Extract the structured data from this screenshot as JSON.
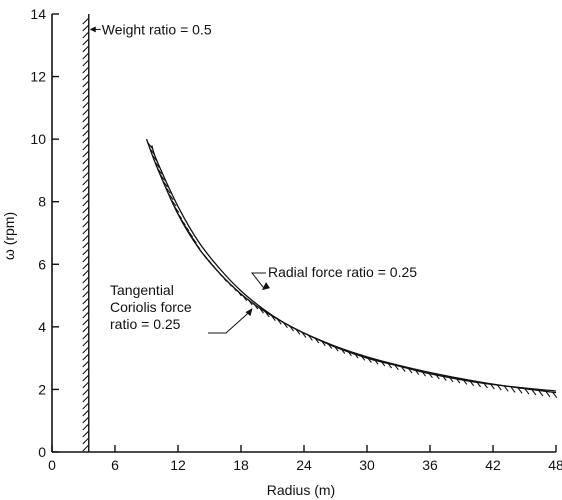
{
  "chart_data": {
    "type": "line",
    "title": "",
    "xlabel": "Radius (m)",
    "ylabel": "ω (rpm)",
    "xlim": [
      0,
      48
    ],
    "ylim": [
      0,
      14
    ],
    "xticks": [
      0,
      6,
      12,
      18,
      24,
      30,
      36,
      42,
      48
    ],
    "yticks": [
      0,
      2,
      4,
      6,
      8,
      10,
      12,
      14
    ],
    "grid": false,
    "legend": "none",
    "series": [
      {
        "label": "Weight ratio = 0.5",
        "kind": "vertical-boundary",
        "x": [
          3.5,
          3.5
        ],
        "y": [
          0,
          14
        ],
        "hatched": true
      },
      {
        "label": "Radial force ratio = 0.25",
        "kind": "curve",
        "x": [
          9.5,
          10,
          12,
          14,
          16,
          18,
          20,
          22,
          24,
          27,
          30,
          33,
          36,
          40,
          44,
          48
        ],
        "y": [
          9.8,
          9.3,
          7.85,
          6.7,
          5.85,
          5.15,
          4.6,
          4.15,
          3.8,
          3.35,
          3.0,
          2.75,
          2.5,
          2.25,
          2.08,
          1.95
        ],
        "hatched": false
      },
      {
        "label": "Tangential\nCoriolis force\nratio = 0.25",
        "kind": "curve",
        "x": [
          9,
          10,
          12,
          14,
          16,
          18,
          20,
          22,
          24,
          27,
          30,
          33,
          36,
          40,
          44,
          48
        ],
        "y": [
          10.0,
          9.1,
          7.6,
          6.5,
          5.7,
          5.05,
          4.55,
          4.15,
          3.8,
          3.38,
          3.04,
          2.77,
          2.54,
          2.28,
          2.07,
          1.9
        ],
        "hatched": true
      }
    ],
    "annotations": [
      {
        "text": "Weight ratio = 0.5",
        "at": [
          3.5,
          13.7
        ]
      },
      {
        "text": "Radial force ratio = 0.25",
        "at": [
          20,
          5.3
        ]
      },
      {
        "text": "Tangential\nCoriolis force\nratio = 0.25",
        "at": [
          19,
          4.6
        ]
      }
    ]
  }
}
